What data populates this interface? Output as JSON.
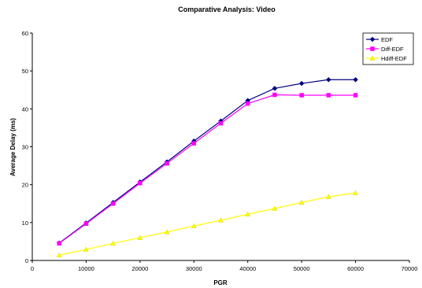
{
  "chart_data": {
    "type": "line",
    "title": "Comparative Analysis: Video",
    "xlabel": "PGR",
    "ylabel": "Average Delay (ms)",
    "xlim": [
      0,
      70000
    ],
    "ylim": [
      0,
      60
    ],
    "xticks": [
      0,
      10000,
      20000,
      30000,
      40000,
      50000,
      60000,
      70000
    ],
    "yticks": [
      0,
      10,
      20,
      30,
      40,
      50,
      60
    ],
    "grid": false,
    "legend_position": "top-right",
    "x": [
      5000,
      10000,
      15000,
      20000,
      25000,
      30000,
      35000,
      40000,
      45000,
      50000,
      55000,
      60000
    ],
    "series": [
      {
        "name": "EDF",
        "color": "#000080",
        "marker": "diamond",
        "values": [
          4.6,
          9.9,
          15.3,
          20.7,
          26.0,
          31.5,
          36.8,
          42.2,
          45.4,
          46.7,
          47.7,
          47.7
        ]
      },
      {
        "name": "Diff-EDF",
        "color": "#ff00ff",
        "marker": "square",
        "values": [
          4.5,
          9.7,
          15.0,
          20.4,
          25.6,
          30.9,
          36.2,
          41.4,
          43.7,
          43.6,
          43.6,
          43.6
        ]
      },
      {
        "name": "Hdiff-EDF",
        "color": "#ffff00",
        "marker": "triangle",
        "values": [
          1.4,
          2.9,
          4.5,
          6.0,
          7.5,
          9.1,
          10.6,
          12.2,
          13.7,
          15.3,
          16.8,
          17.8
        ]
      }
    ]
  }
}
